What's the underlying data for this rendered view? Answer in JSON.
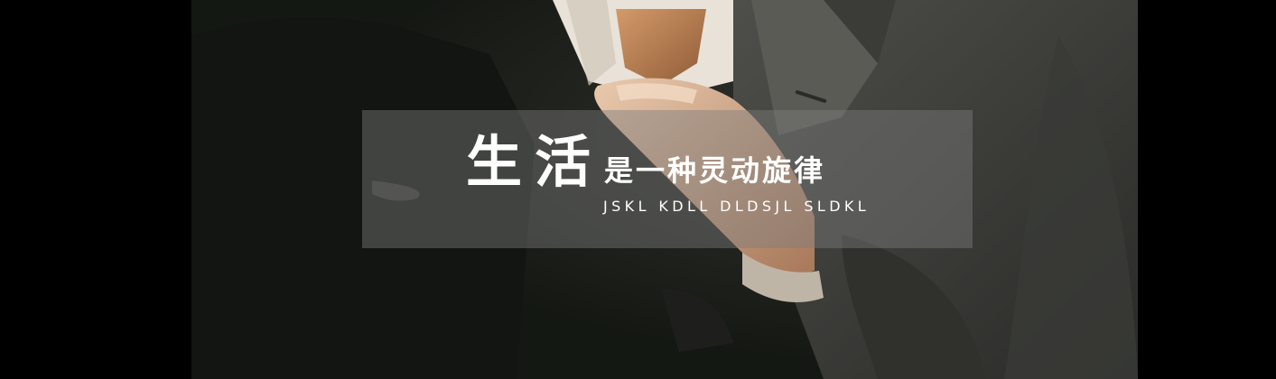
{
  "banner": {
    "headline_big": "生活",
    "headline_small": "是一种灵动旋律",
    "subline": "JSKL KDLL DLDSJL SLDKL"
  },
  "colors": {
    "page_background": "#000000",
    "text": "#ffffff",
    "caption_panel": "rgba(125,125,125,0.45)"
  }
}
